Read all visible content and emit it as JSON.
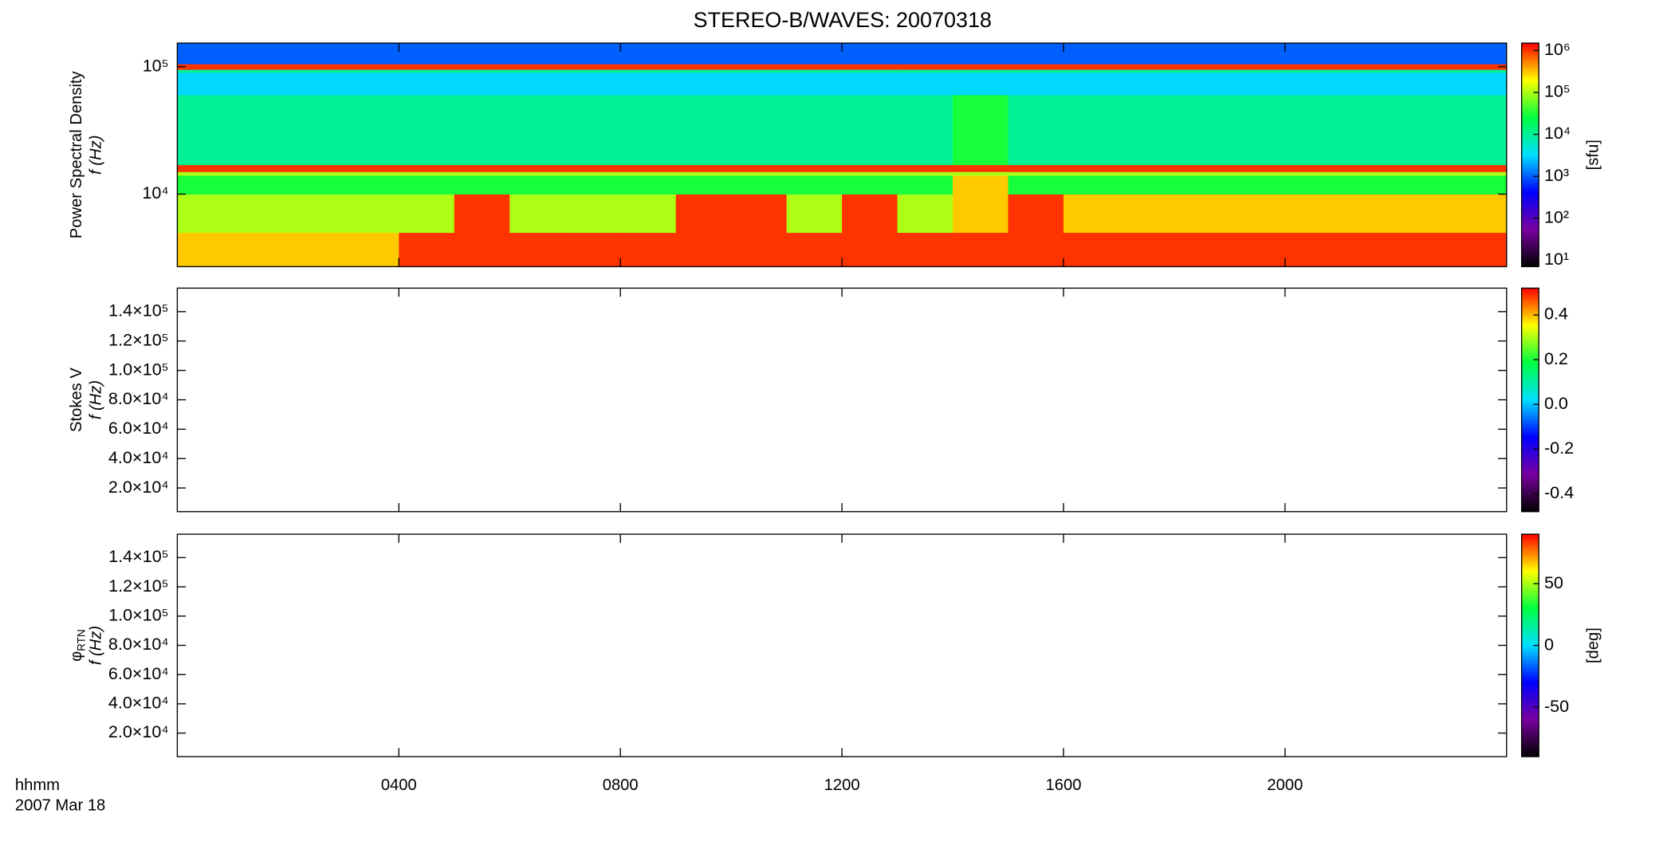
{
  "chart_data": [
    {
      "type": "spectrogram",
      "title": "STEREO-B/WAVES: 20070318",
      "ylabel": "Power Spectral Density",
      "ylabel2": "f (Hz)",
      "log": true,
      "ylim": [
        2700,
        153000
      ],
      "yticks": [
        {
          "value": 10000,
          "label": "10⁴"
        },
        {
          "value": 100000,
          "label": "10⁵"
        }
      ],
      "time_edges": [
        0,
        1,
        2,
        3,
        4,
        5,
        6,
        7,
        8,
        9,
        10,
        11,
        12,
        13,
        14,
        15,
        16,
        17,
        18,
        19,
        20,
        21,
        22,
        23,
        24
      ],
      "freq_edges": [
        2700,
        5000,
        10000,
        14000,
        15000,
        17000,
        60000,
        90000,
        95000,
        105000,
        153000
      ],
      "z": [
        [
          300000,
          300000,
          300000,
          300000,
          1000000,
          1000000,
          1000000,
          1000000,
          1000000,
          1000000,
          1000000,
          1000000,
          1000000,
          1000000,
          1000000,
          1000000,
          1000000,
          1000000,
          1000000,
          1000000,
          1000000,
          1000000,
          1000000,
          1000000
        ],
        [
          100000,
          100000,
          100000,
          100000,
          100000,
          1000000,
          100000,
          100000,
          100000,
          1000000,
          1000000,
          100000,
          1000000,
          100000,
          300000,
          1000000,
          300000,
          300000,
          300000,
          300000,
          300000,
          300000,
          300000,
          300000
        ],
        [
          30000,
          30000,
          30000,
          30000,
          30000,
          30000,
          30000,
          30000,
          30000,
          30000,
          30000,
          30000,
          30000,
          30000,
          300000,
          30000,
          30000,
          30000,
          30000,
          30000,
          30000,
          30000,
          30000,
          30000
        ],
        [
          100000,
          100000,
          100000,
          100000,
          100000,
          100000,
          100000,
          100000,
          100000,
          100000,
          100000,
          100000,
          100000,
          100000,
          100000,
          100000,
          100000,
          100000,
          100000,
          100000,
          100000,
          100000,
          100000,
          100000
        ],
        [
          1000000,
          1000000,
          1000000,
          1000000,
          1000000,
          1000000,
          1000000,
          1000000,
          1000000,
          1000000,
          1000000,
          1000000,
          1000000,
          1000000,
          1000000,
          1000000,
          1000000,
          1000000,
          1000000,
          1000000,
          1000000,
          1000000,
          1000000,
          1000000
        ],
        [
          10000,
          10000,
          10000,
          10000,
          10000,
          10000,
          10000,
          10000,
          10000,
          10000,
          10000,
          10000,
          10000,
          10000,
          30000,
          10000,
          10000,
          10000,
          10000,
          10000,
          10000,
          10000,
          10000,
          10000
        ],
        [
          3000,
          3000,
          3000,
          3000,
          3000,
          3000,
          3000,
          3000,
          3000,
          3000,
          3000,
          3000,
          3000,
          3000,
          3000,
          3000,
          3000,
          3000,
          3000,
          3000,
          3000,
          3000,
          3000,
          3000
        ],
        [
          10000,
          10000,
          10000,
          10000,
          10000,
          10000,
          10000,
          10000,
          10000,
          10000,
          10000,
          10000,
          10000,
          10000,
          10000,
          10000,
          10000,
          10000,
          10000,
          10000,
          10000,
          10000,
          10000,
          10000
        ],
        [
          1000000,
          1000000,
          1000000,
          1000000,
          1000000,
          1000000,
          1000000,
          1000000,
          1000000,
          1000000,
          1000000,
          1000000,
          1000000,
          1000000,
          1000000,
          1000000,
          1000000,
          1000000,
          1000000,
          1000000,
          1000000,
          1000000,
          1000000,
          1000000
        ],
        [
          1000,
          1000,
          1000,
          1000,
          1000,
          1000,
          1000,
          1000,
          1000,
          1000,
          1000,
          1000,
          1000,
          1000,
          1000,
          1000,
          1000,
          1000,
          1000,
          1000,
          1000,
          1000,
          1000,
          1000
        ]
      ],
      "colormap": [
        "#000000",
        "#7a00a0",
        "#0000ff",
        "#00e0ff",
        "#00ff40",
        "#ffff00",
        "#ff0000"
      ],
      "colorbar": {
        "label": "[sfu]",
        "log": true,
        "lim": [
          7,
          1500000
        ],
        "ticks": [
          {
            "value": 10,
            "label": "10¹"
          },
          {
            "value": 100,
            "label": "10²"
          },
          {
            "value": 1000,
            "label": "10³"
          },
          {
            "value": 10000,
            "label": "10⁴"
          },
          {
            "value": 100000,
            "label": "10⁵"
          },
          {
            "value": 1000000,
            "label": "10⁶"
          }
        ]
      }
    },
    {
      "type": "spectrogram",
      "ylabel": "Stokes V",
      "ylabel2": "f (Hz)",
      "log": false,
      "ylim": [
        3900,
        156000
      ],
      "yticks": [
        {
          "value": 20000,
          "label": "2.0×10⁴"
        },
        {
          "value": 40000,
          "label": "4.0×10⁴"
        },
        {
          "value": 60000,
          "label": "6.0×10⁴"
        },
        {
          "value": 80000,
          "label": "8.0×10⁴"
        },
        {
          "value": 100000,
          "label": "1.0×10⁵"
        },
        {
          "value": 120000,
          "label": "1.2×10⁵"
        },
        {
          "value": 140000,
          "label": "1.4×10⁵"
        }
      ],
      "colormap": [
        "#000000",
        "#7a00a0",
        "#0000ff",
        "#00e0ff",
        "#00ff40",
        "#ffff00",
        "#ff0000"
      ],
      "colorbar": {
        "log": false,
        "lim": [
          -0.48,
          0.52
        ],
        "ticks": [
          {
            "value": -0.4,
            "label": "-0.4"
          },
          {
            "value": -0.2,
            "label": "-0.2"
          },
          {
            "value": 0,
            "label": "0.0"
          },
          {
            "value": 0.2,
            "label": "0.2"
          },
          {
            "value": 0.4,
            "label": "0.4"
          }
        ]
      }
    },
    {
      "type": "spectrogram",
      "ylabel": "φ",
      "ylabel_sub": "RTN",
      "ylabel2": "f (Hz)",
      "log": false,
      "ylim": [
        3900,
        156000
      ],
      "yticks": [
        {
          "value": 20000,
          "label": "2.0×10⁴"
        },
        {
          "value": 40000,
          "label": "4.0×10⁴"
        },
        {
          "value": 60000,
          "label": "6.0×10⁴"
        },
        {
          "value": 80000,
          "label": "8.0×10⁴"
        },
        {
          "value": 100000,
          "label": "1.0×10⁵"
        },
        {
          "value": 120000,
          "label": "1.2×10⁵"
        },
        {
          "value": 140000,
          "label": "1.4×10⁵"
        }
      ],
      "colormap": [
        "#000000",
        "#7a00a0",
        "#0000ff",
        "#00e0ff",
        "#00ff40",
        "#ffff00",
        "#ff0000"
      ],
      "colorbar": {
        "label": "[deg]",
        "log": false,
        "lim": [
          -90,
          90
        ],
        "ticks": [
          -50,
          0,
          50
        ]
      },
      "xlabel": "hhmm",
      "date": "2007 Mar 18",
      "xlim": [
        0,
        24
      ],
      "xticks": [
        {
          "value": 4,
          "label": "0400"
        },
        {
          "value": 8,
          "label": "0800"
        },
        {
          "value": 12,
          "label": "1200"
        },
        {
          "value": 16,
          "label": "1600"
        },
        {
          "value": 20,
          "label": "2000"
        }
      ]
    }
  ]
}
